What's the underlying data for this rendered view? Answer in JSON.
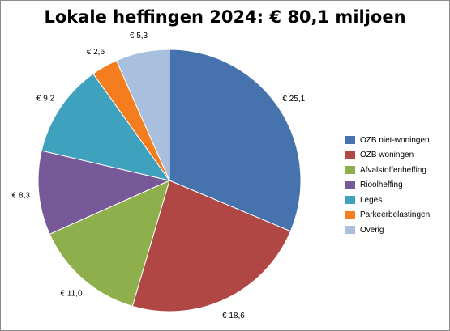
{
  "chart_data": {
    "type": "pie",
    "title": "Lokale heffingen 2024: € 80,1 miljoen",
    "start_angle_deg": 0,
    "direction": "clockwise",
    "slices": [
      {
        "name": "OZB niet-woningen",
        "value": 25.1,
        "label": "€ 25,1",
        "color": "#4673ae"
      },
      {
        "name": "OZB woningen",
        "value": 18.6,
        "label": "€ 18,6",
        "color": "#b04744"
      },
      {
        "name": "Afvalstoffenheffing",
        "value": 11.0,
        "label": "€ 11,0",
        "color": "#8db04c"
      },
      {
        "name": "Rioolheffing",
        "value": 8.3,
        "label": "€ 8,3",
        "color": "#77599a"
      },
      {
        "name": "Leges",
        "value": 9.2,
        "label": "€ 9,2",
        "color": "#3ea1be"
      },
      {
        "name": "Parkeerbelastingen",
        "value": 2.6,
        "label": "€ 2,6",
        "color": "#f47e1f"
      },
      {
        "name": "Overig",
        "value": 5.3,
        "label": "€ 5,3",
        "color": "#a8c0de"
      }
    ],
    "legend_position": "right"
  }
}
